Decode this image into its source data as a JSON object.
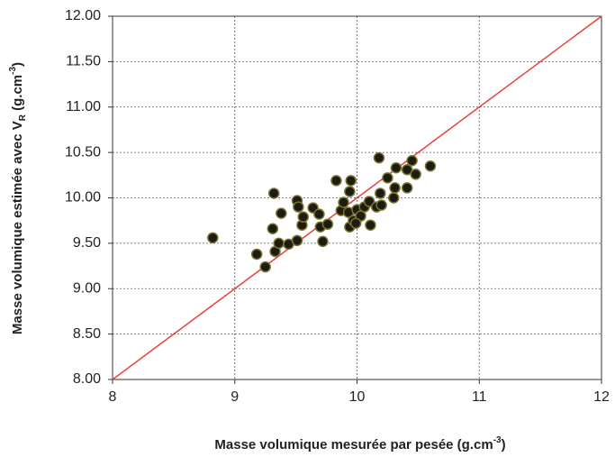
{
  "chart_data": {
    "type": "scatter",
    "x_label": [
      "Masse volumique mesurée par pesée (g.cm",
      "-3",
      ")"
    ],
    "y_label": [
      "Masse volumique estimée avec V",
      "R",
      " (g.cm",
      "-3",
      ")"
    ],
    "xlim": [
      8,
      12
    ],
    "ylim": [
      8,
      12
    ],
    "xticks": [
      8,
      9,
      10,
      11,
      12
    ],
    "yticks": [
      {
        "value": 8,
        "label": "8.00"
      },
      {
        "value": 8.5,
        "label": "8.50"
      },
      {
        "value": 9,
        "label": "9.00"
      },
      {
        "value": 9.5,
        "label": "9.50"
      },
      {
        "value": 10,
        "label": "10.00"
      },
      {
        "value": 10.5,
        "label": "10.50"
      },
      {
        "value": 11,
        "label": "11.00"
      },
      {
        "value": 11.5,
        "label": "11.50"
      },
      {
        "value": 12,
        "label": "12.00"
      }
    ],
    "grid": true,
    "reference_line": {
      "slope": 1,
      "intercept": 0,
      "color": "#e8413c"
    },
    "series": [
      {
        "color": "#1c1c12",
        "edge_color": "#7a7330",
        "x": [
          8.82,
          9.18,
          9.25,
          9.32,
          9.31,
          9.33,
          9.36,
          9.38,
          9.44,
          9.51,
          9.51,
          9.52,
          9.55,
          9.56,
          9.64,
          9.69,
          9.7,
          9.72,
          9.76,
          9.83,
          9.87,
          9.89,
          9.93,
          9.94,
          9.95,
          9.94,
          9.97,
          10.0,
          10.03,
          10.06,
          10.1,
          10.11,
          10.16,
          10.18,
          10.19,
          10.2,
          10.25,
          10.3,
          10.31,
          10.32,
          10.41,
          10.41,
          10.45,
          10.48,
          10.6,
          9.99
        ],
        "values": [
          9.56,
          9.38,
          9.24,
          10.05,
          9.66,
          9.41,
          9.5,
          9.83,
          9.49,
          9.53,
          9.97,
          9.9,
          9.7,
          9.79,
          9.89,
          9.82,
          9.68,
          9.52,
          9.71,
          10.19,
          9.86,
          9.95,
          9.84,
          10.07,
          10.19,
          9.68,
          9.75,
          9.87,
          9.8,
          9.9,
          9.96,
          9.7,
          9.9,
          10.44,
          10.05,
          9.92,
          10.22,
          10.0,
          10.11,
          10.33,
          10.11,
          10.31,
          10.41,
          10.26,
          10.35,
          9.72
        ]
      }
    ]
  }
}
